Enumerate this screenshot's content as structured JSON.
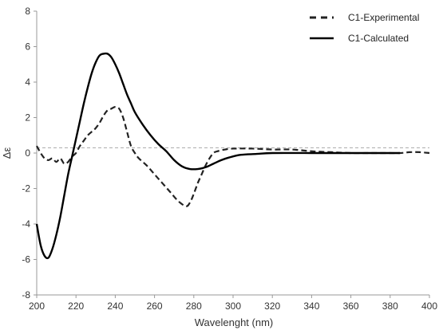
{
  "chart_data": {
    "type": "line",
    "title": "",
    "xlabel": "Wavelenght (nm)",
    "ylabel": "Δε",
    "xlim": [
      200,
      400
    ],
    "ylim": [
      -8,
      8
    ],
    "xticks": [
      "200",
      "220",
      "240",
      "260",
      "280",
      "300",
      "320",
      "340",
      "360",
      "380",
      "400"
    ],
    "yticks": [
      "8",
      "6",
      "4",
      "2",
      "0",
      "-2",
      "-4",
      "-6",
      "-8"
    ],
    "grid": false,
    "legend_position": "top-right",
    "reference_line": {
      "y": 0.3,
      "style": "dashed",
      "color": "#aaaaaa"
    },
    "series": [
      {
        "name": "C1-Experimental",
        "style": "dashed",
        "color": "#222222",
        "x": [
          200,
          202,
          204,
          206,
          208,
          210,
          212,
          214,
          216,
          218,
          220,
          222,
          224,
          226,
          228,
          230,
          232,
          234,
          236,
          238,
          240,
          242,
          244,
          246,
          248,
          250,
          252,
          256,
          260,
          264,
          268,
          272,
          276,
          278,
          280,
          282,
          284,
          286,
          288,
          290,
          292,
          296,
          300,
          310,
          320,
          330,
          340,
          350,
          360,
          370,
          380,
          385,
          390,
          395,
          400
        ],
        "y": [
          0.4,
          0.0,
          -0.3,
          -0.4,
          -0.3,
          -0.5,
          -0.3,
          -0.6,
          -0.5,
          -0.2,
          0.0,
          0.4,
          0.7,
          1.0,
          1.2,
          1.4,
          1.7,
          2.1,
          2.4,
          2.5,
          2.6,
          2.5,
          2.0,
          1.2,
          0.4,
          0.0,
          -0.3,
          -0.7,
          -1.2,
          -1.7,
          -2.2,
          -2.7,
          -3.0,
          -2.8,
          -2.3,
          -1.7,
          -1.2,
          -0.7,
          -0.3,
          0.0,
          0.1,
          0.2,
          0.25,
          0.25,
          0.2,
          0.2,
          0.1,
          0.05,
          0.0,
          0.0,
          0.0,
          0.0,
          0.05,
          0.05,
          0.0
        ]
      },
      {
        "name": "C1-Calculated",
        "style": "solid",
        "color": "#000000",
        "x": [
          200,
          202,
          204,
          206,
          208,
          210,
          212,
          214,
          216,
          218,
          220,
          222,
          224,
          226,
          228,
          230,
          232,
          234,
          236,
          238,
          240,
          242,
          244,
          246,
          248,
          250,
          254,
          258,
          262,
          266,
          270,
          274,
          278,
          282,
          286,
          290,
          294,
          298,
          304,
          312,
          320,
          340,
          360,
          380,
          385
        ],
        "y": [
          -4.0,
          -5.2,
          -5.8,
          -5.9,
          -5.4,
          -4.6,
          -3.6,
          -2.4,
          -1.2,
          -0.2,
          0.8,
          1.8,
          2.8,
          3.7,
          4.5,
          5.1,
          5.5,
          5.6,
          5.6,
          5.4,
          5.0,
          4.5,
          3.9,
          3.3,
          2.8,
          2.3,
          1.6,
          1.0,
          0.5,
          0.1,
          -0.4,
          -0.75,
          -0.9,
          -0.9,
          -0.8,
          -0.6,
          -0.4,
          -0.25,
          -0.1,
          -0.05,
          0.0,
          0.0,
          0.0,
          0.0,
          0.0
        ]
      }
    ]
  }
}
